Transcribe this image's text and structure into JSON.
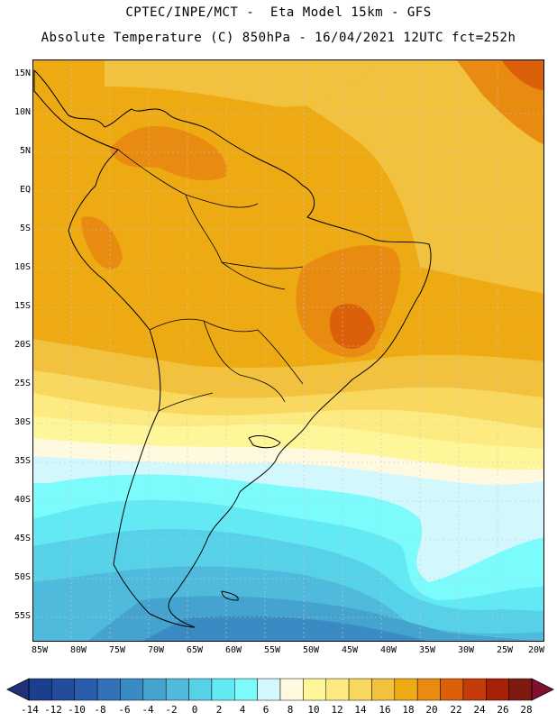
{
  "header": {
    "line1": "CPTEC/INPE/MCT -  Eta Model 15km - GFS",
    "line2": "Absolute Temperature (C) 850hPa - 16/04/2021 12UTC fct=252h"
  },
  "map": {
    "lat_labels": [
      "15N",
      "10N",
      "5N",
      "EQ",
      "5S",
      "10S",
      "15S",
      "20S",
      "25S",
      "30S",
      "35S",
      "40S",
      "45S",
      "50S",
      "55S"
    ],
    "lon_labels": [
      "85W",
      "80W",
      "75W",
      "70W",
      "65W",
      "60W",
      "55W",
      "50W",
      "45W",
      "40W",
      "35W",
      "30W",
      "25W",
      "20W"
    ],
    "lat_range": [
      15,
      -57
    ],
    "lon_range": [
      -85,
      -20
    ]
  },
  "colorbar": {
    "labels": [
      "-14",
      "-12",
      "-10",
      "-8",
      "-6",
      "-4",
      "-2",
      "0",
      "2",
      "4",
      "6",
      "8",
      "10",
      "12",
      "14",
      "16",
      "18",
      "20",
      "22",
      "24",
      "26",
      "28"
    ],
    "colors": [
      "#1c3e8e",
      "#244c9c",
      "#2b5cab",
      "#3273b8",
      "#3a8bc3",
      "#45a3cf",
      "#4fbadb",
      "#57d1e8",
      "#63e9f3",
      "#7cfbfc",
      "#d2f7fd",
      "#fff9e0",
      "#fef79a",
      "#fdea80",
      "#f9d860",
      "#f2c13e",
      "#eeaa12",
      "#e88b10",
      "#dc5f0a",
      "#c63b0a",
      "#a52208",
      "#7e1a10"
    ],
    "under_color": "#20307a",
    "over_color": "#820f2e"
  }
}
